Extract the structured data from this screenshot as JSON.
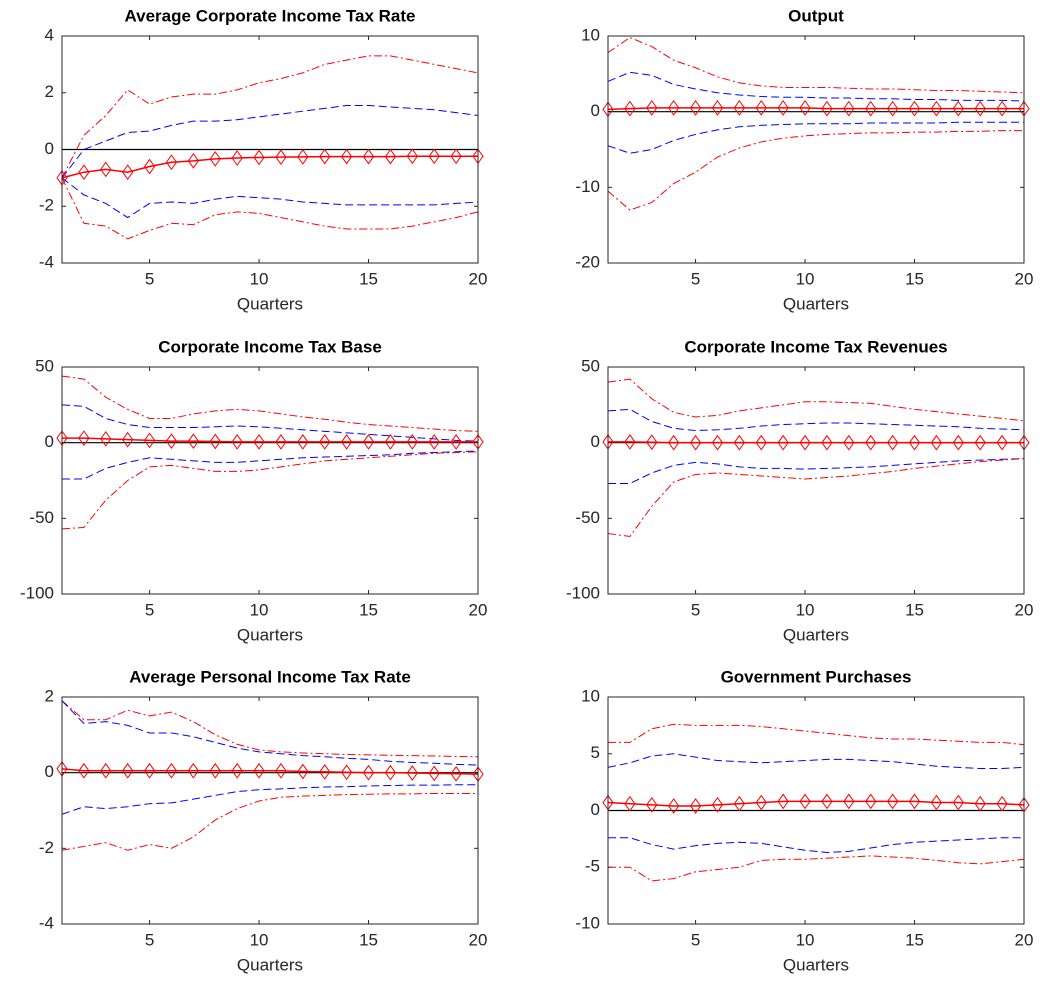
{
  "chart_data": [
    {
      "type": "line",
      "title": "Average Corporate Income Tax Rate",
      "xlabel": "Quarters",
      "x": [
        1,
        2,
        3,
        4,
        5,
        6,
        7,
        8,
        9,
        10,
        11,
        12,
        13,
        14,
        15,
        16,
        17,
        18,
        19,
        20
      ],
      "xlim": [
        1,
        20
      ],
      "xticks": [
        5,
        10,
        15,
        20
      ],
      "ylim": [
        -4,
        4
      ],
      "yticks": [
        -4,
        -2,
        0,
        2,
        4
      ],
      "grid": false,
      "reference_line": {
        "value": 0,
        "color": "#000000"
      },
      "series": [
        {
          "color": "#ff0000",
          "dash": "dashdot",
          "values": [
            -1,
            0.5,
            1.2,
            2.1,
            1.6,
            1.85,
            1.95,
            1.95,
            2.1,
            2.35,
            2.5,
            2.7,
            3.0,
            3.15,
            3.3,
            3.3,
            3.15,
            3.0,
            2.85,
            2.7
          ]
        },
        {
          "color": "#0000ff",
          "dash": "dashed",
          "values": [
            -1,
            0.0,
            0.3,
            0.6,
            0.65,
            0.85,
            1.0,
            1.0,
            1.05,
            1.15,
            1.25,
            1.35,
            1.45,
            1.55,
            1.55,
            1.5,
            1.45,
            1.4,
            1.3,
            1.2
          ]
        },
        {
          "color": "#ff0000",
          "dash": "solid",
          "marker": "diamond",
          "values": [
            -1,
            -0.8,
            -0.7,
            -0.8,
            -0.6,
            -0.45,
            -0.4,
            -0.33,
            -0.3,
            -0.28,
            -0.27,
            -0.26,
            -0.25,
            -0.25,
            -0.25,
            -0.25,
            -0.24,
            -0.24,
            -0.24,
            -0.24
          ]
        },
        {
          "color": "#0000ff",
          "dash": "dashed",
          "values": [
            -1,
            -1.6,
            -1.9,
            -2.4,
            -1.9,
            -1.85,
            -1.9,
            -1.75,
            -1.65,
            -1.7,
            -1.75,
            -1.85,
            -1.9,
            -1.95,
            -1.95,
            -1.95,
            -1.95,
            -1.95,
            -1.9,
            -1.85
          ]
        },
        {
          "color": "#ff0000",
          "dash": "dashdot",
          "values": [
            -1,
            -2.6,
            -2.7,
            -3.15,
            -2.85,
            -2.6,
            -2.65,
            -2.3,
            -2.2,
            -2.25,
            -2.4,
            -2.55,
            -2.7,
            -2.8,
            -2.8,
            -2.8,
            -2.7,
            -2.55,
            -2.4,
            -2.2
          ]
        }
      ]
    },
    {
      "type": "line",
      "title": "Output",
      "xlabel": "Quarters",
      "x": [
        1,
        2,
        3,
        4,
        5,
        6,
        7,
        8,
        9,
        10,
        11,
        12,
        13,
        14,
        15,
        16,
        17,
        18,
        19,
        20
      ],
      "xlim": [
        1,
        20
      ],
      "xticks": [
        5,
        10,
        15,
        20
      ],
      "ylim": [
        -20,
        10
      ],
      "yticks": [
        -20,
        -10,
        0,
        10
      ],
      "grid": false,
      "reference_line": {
        "value": 0,
        "color": "#000000"
      },
      "series": [
        {
          "color": "#ff0000",
          "dash": "dashdot",
          "values": [
            7.8,
            9.8,
            8.6,
            6.8,
            5.8,
            4.6,
            3.8,
            3.4,
            3.2,
            3.2,
            3.2,
            3.1,
            3.0,
            3.0,
            2.9,
            2.8,
            2.8,
            2.7,
            2.6,
            2.5
          ]
        },
        {
          "color": "#0000ff",
          "dash": "dashed",
          "values": [
            4,
            5.2,
            4.8,
            3.6,
            3.0,
            2.5,
            2.2,
            2.0,
            1.9,
            1.9,
            1.8,
            1.8,
            1.7,
            1.7,
            1.6,
            1.6,
            1.5,
            1.5,
            1.5,
            1.4
          ]
        },
        {
          "color": "#ff0000",
          "dash": "solid",
          "marker": "diamond",
          "values": [
            0.3,
            0.4,
            0.5,
            0.5,
            0.5,
            0.5,
            0.5,
            0.5,
            0.5,
            0.5,
            0.4,
            0.4,
            0.4,
            0.4,
            0.4,
            0.4,
            0.4,
            0.4,
            0.4,
            0.4
          ]
        },
        {
          "color": "#0000ff",
          "dash": "dashed",
          "values": [
            -4.5,
            -5.5,
            -5,
            -3.8,
            -3,
            -2.4,
            -2.0,
            -1.8,
            -1.7,
            -1.6,
            -1.6,
            -1.6,
            -1.5,
            -1.5,
            -1.5,
            -1.5,
            -1.4,
            -1.4,
            -1.4,
            -1.4
          ]
        },
        {
          "color": "#ff0000",
          "dash": "dashdot",
          "values": [
            -10.5,
            -13,
            -12,
            -9.5,
            -8,
            -6,
            -4.8,
            -4,
            -3.5,
            -3.2,
            -3.0,
            -2.9,
            -2.8,
            -2.8,
            -2.7,
            -2.7,
            -2.6,
            -2.6,
            -2.5,
            -2.5
          ]
        }
      ]
    },
    {
      "type": "line",
      "title": "Corporate Income Tax Base",
      "xlabel": "Quarters",
      "x": [
        1,
        2,
        3,
        4,
        5,
        6,
        7,
        8,
        9,
        10,
        11,
        12,
        13,
        14,
        15,
        16,
        17,
        18,
        19,
        20
      ],
      "xlim": [
        1,
        20
      ],
      "xticks": [
        5,
        10,
        15,
        20
      ],
      "ylim": [
        -100,
        50
      ],
      "yticks": [
        -100,
        -50,
        0,
        50
      ],
      "grid": false,
      "reference_line": {
        "value": 0,
        "color": "#000000"
      },
      "series": [
        {
          "color": "#ff0000",
          "dash": "dashdot",
          "values": [
            44,
            42,
            30,
            22,
            16,
            16,
            19,
            21,
            22,
            21,
            19,
            17,
            15.5,
            13.5,
            12,
            11,
            10,
            9,
            8,
            7.5
          ]
        },
        {
          "color": "#0000ff",
          "dash": "dashed",
          "values": [
            25,
            24,
            16,
            12,
            10,
            10,
            10,
            10.5,
            11,
            10.5,
            9.5,
            8.5,
            7.5,
            6.5,
            5.5,
            4.5,
            3.5,
            2.5,
            1.5,
            1
          ]
        },
        {
          "color": "#ff0000",
          "dash": "solid",
          "marker": "diamond",
          "values": [
            3,
            3,
            2.5,
            2,
            1.5,
            1,
            1,
            0.8,
            0.5,
            0.5,
            0.5,
            0.5,
            0.5,
            0.5,
            0.5,
            0.5,
            0.5,
            0.5,
            0.5,
            0.5
          ]
        },
        {
          "color": "#0000ff",
          "dash": "dashed",
          "values": [
            -24,
            -24,
            -17,
            -13,
            -10,
            -11,
            -12,
            -13,
            -13,
            -12,
            -11,
            -10,
            -9.5,
            -9,
            -8.5,
            -8,
            -7,
            -6.5,
            -6,
            -5.5
          ]
        },
        {
          "color": "#ff0000",
          "dash": "dashdot",
          "values": [
            -57,
            -56,
            -38,
            -25,
            -16,
            -15,
            -17,
            -19,
            -19,
            -18,
            -16,
            -14,
            -12,
            -11,
            -10,
            -9,
            -8,
            -7,
            -6.5,
            -6
          ]
        }
      ]
    },
    {
      "type": "line",
      "title": "Corporate Income Tax Revenues",
      "xlabel": "Quarters",
      "x": [
        1,
        2,
        3,
        4,
        5,
        6,
        7,
        8,
        9,
        10,
        11,
        12,
        13,
        14,
        15,
        16,
        17,
        18,
        19,
        20
      ],
      "xlim": [
        1,
        20
      ],
      "xticks": [
        5,
        10,
        15,
        20
      ],
      "ylim": [
        -100,
        50
      ],
      "yticks": [
        -100,
        -50,
        0,
        50
      ],
      "grid": false,
      "reference_line": {
        "value": 0,
        "color": "#000000"
      },
      "series": [
        {
          "color": "#ff0000",
          "dash": "dashdot",
          "values": [
            40,
            42,
            29,
            20,
            17,
            18,
            21,
            23,
            25,
            27,
            27,
            26.5,
            26,
            24,
            22,
            20.5,
            19,
            17.5,
            16,
            14.5
          ]
        },
        {
          "color": "#0000ff",
          "dash": "dashed",
          "values": [
            21,
            22,
            14,
            9.5,
            8,
            8.5,
            9.5,
            11,
            12,
            12.5,
            13,
            13,
            12.5,
            12,
            11.5,
            11,
            10.5,
            9.5,
            9,
            8.5
          ]
        },
        {
          "color": "#ff0000",
          "dash": "solid",
          "marker": "diamond",
          "values": [
            0.5,
            0.5,
            0.3,
            0,
            0,
            0,
            0,
            0,
            0,
            0,
            0,
            0,
            0,
            0,
            0,
            0,
            0,
            0,
            0,
            0
          ]
        },
        {
          "color": "#0000ff",
          "dash": "dashed",
          "values": [
            -27,
            -27,
            -20,
            -15,
            -13,
            -14,
            -16,
            -17,
            -17,
            -17.5,
            -17,
            -16.5,
            -16,
            -15,
            -14,
            -13,
            -12,
            -11.5,
            -11,
            -10.5
          ]
        },
        {
          "color": "#ff0000",
          "dash": "dashdot",
          "values": [
            -60,
            -62,
            -42,
            -26,
            -21,
            -20,
            -21,
            -22,
            -23,
            -24,
            -23,
            -22,
            -20.5,
            -19,
            -17,
            -15.5,
            -14,
            -12.5,
            -11.5,
            -10.5
          ]
        }
      ]
    },
    {
      "type": "line",
      "title": "Average Personal Income Tax Rate",
      "xlabel": "Quarters",
      "x": [
        1,
        2,
        3,
        4,
        5,
        6,
        7,
        8,
        9,
        10,
        11,
        12,
        13,
        14,
        15,
        16,
        17,
        18,
        19,
        20
      ],
      "xlim": [
        1,
        20
      ],
      "xticks": [
        5,
        10,
        15,
        20
      ],
      "ylim": [
        -4,
        2
      ],
      "yticks": [
        -4,
        -2,
        0,
        2
      ],
      "grid": false,
      "reference_line": {
        "value": 0,
        "color": "#000000"
      },
      "series": [
        {
          "color": "#ff0000",
          "dash": "dashdot",
          "values": [
            1.9,
            1.4,
            1.4,
            1.65,
            1.5,
            1.6,
            1.35,
            1.0,
            0.75,
            0.6,
            0.55,
            0.52,
            0.5,
            0.48,
            0.47,
            0.46,
            0.45,
            0.44,
            0.43,
            0.42
          ]
        },
        {
          "color": "#0000ff",
          "dash": "dashed",
          "values": [
            1.9,
            1.3,
            1.35,
            1.25,
            1.05,
            1.05,
            0.95,
            0.8,
            0.65,
            0.55,
            0.5,
            0.45,
            0.42,
            0.38,
            0.35,
            0.3,
            0.27,
            0.25,
            0.22,
            0.2
          ]
        },
        {
          "color": "#ff0000",
          "dash": "solid",
          "marker": "diamond",
          "values": [
            0.1,
            0.05,
            0.05,
            0.05,
            0.05,
            0.05,
            0.05,
            0.05,
            0.05,
            0.05,
            0.05,
            0.03,
            0.02,
            0.01,
            0,
            0,
            -0.01,
            -0.02,
            -0.03,
            -0.04
          ]
        },
        {
          "color": "#0000ff",
          "dash": "dashed",
          "values": [
            -1.1,
            -0.9,
            -0.95,
            -0.9,
            -0.82,
            -0.8,
            -0.7,
            -0.6,
            -0.5,
            -0.45,
            -0.43,
            -0.4,
            -0.38,
            -0.37,
            -0.35,
            -0.34,
            -0.33,
            -0.33,
            -0.32,
            -0.32
          ]
        },
        {
          "color": "#ff0000",
          "dash": "dashdot",
          "values": [
            -2.05,
            -1.95,
            -1.85,
            -2.05,
            -1.9,
            -2.0,
            -1.7,
            -1.25,
            -0.95,
            -0.75,
            -0.65,
            -0.62,
            -0.6,
            -0.58,
            -0.57,
            -0.56,
            -0.56,
            -0.55,
            -0.55,
            -0.55
          ]
        }
      ]
    },
    {
      "type": "line",
      "title": "Government Purchases",
      "xlabel": "Quarters",
      "x": [
        1,
        2,
        3,
        4,
        5,
        6,
        7,
        8,
        9,
        10,
        11,
        12,
        13,
        14,
        15,
        16,
        17,
        18,
        19,
        20
      ],
      "xlim": [
        1,
        20
      ],
      "xticks": [
        5,
        10,
        15,
        20
      ],
      "ylim": [
        -10,
        10
      ],
      "yticks": [
        -10,
        -5,
        0,
        5,
        10
      ],
      "grid": false,
      "reference_line": {
        "value": 0,
        "color": "#000000"
      },
      "series": [
        {
          "color": "#ff0000",
          "dash": "dashdot",
          "values": [
            6.0,
            6.0,
            7.2,
            7.6,
            7.5,
            7.5,
            7.5,
            7.4,
            7.2,
            7.0,
            6.8,
            6.6,
            6.4,
            6.3,
            6.3,
            6.2,
            6.1,
            6.0,
            6.0,
            5.8
          ]
        },
        {
          "color": "#0000ff",
          "dash": "dashed",
          "values": [
            3.8,
            4.2,
            4.8,
            5.0,
            4.7,
            4.4,
            4.3,
            4.2,
            4.3,
            4.4,
            4.5,
            4.5,
            4.4,
            4.3,
            4.1,
            3.9,
            3.8,
            3.7,
            3.7,
            3.8
          ]
        },
        {
          "color": "#ff0000",
          "dash": "solid",
          "marker": "diamond",
          "values": [
            0.7,
            0.6,
            0.5,
            0.4,
            0.4,
            0.5,
            0.6,
            0.7,
            0.8,
            0.8,
            0.8,
            0.8,
            0.8,
            0.8,
            0.8,
            0.7,
            0.7,
            0.6,
            0.6,
            0.5
          ]
        },
        {
          "color": "#0000ff",
          "dash": "dashed",
          "values": [
            -2.4,
            -2.4,
            -3.0,
            -3.4,
            -3.1,
            -2.9,
            -2.8,
            -2.9,
            -3.2,
            -3.5,
            -3.7,
            -3.6,
            -3.3,
            -3.0,
            -2.8,
            -2.7,
            -2.6,
            -2.5,
            -2.4,
            -2.4
          ]
        },
        {
          "color": "#ff0000",
          "dash": "dashdot",
          "values": [
            -5.0,
            -5.0,
            -6.2,
            -6.0,
            -5.4,
            -5.2,
            -5.0,
            -4.4,
            -4.3,
            -4.3,
            -4.2,
            -4.1,
            -4.0,
            -4.1,
            -4.2,
            -4.4,
            -4.6,
            -4.7,
            -4.5,
            -4.3
          ]
        }
      ]
    }
  ]
}
